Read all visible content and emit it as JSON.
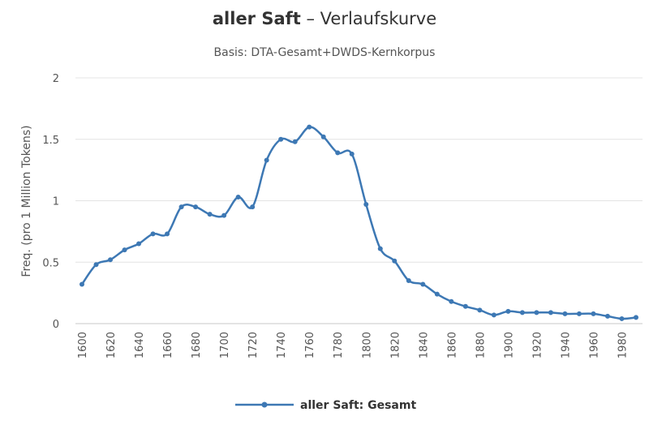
{
  "chart_data": {
    "type": "line",
    "title_bold": "aller Saft",
    "title_rest": " – Verlaufskurve",
    "subtitle": "Basis: DTA-Gesamt+DWDS-Kernkorpus",
    "ylabel": "Freq. (pro 1 Million Tokens)",
    "xlabel": "",
    "ylim": [
      0,
      2
    ],
    "yticks": [
      "0",
      "0.5",
      "1",
      "1.5",
      "2"
    ],
    "xticks": [
      "1600",
      "1620",
      "1640",
      "1660",
      "1680",
      "1700",
      "1720",
      "1740",
      "1760",
      "1780",
      "1800",
      "1820",
      "1840",
      "1860",
      "1880",
      "1900",
      "1920",
      "1940",
      "1960",
      "1980"
    ],
    "x": [
      1600,
      1610,
      1620,
      1630,
      1640,
      1650,
      1660,
      1670,
      1680,
      1690,
      1700,
      1710,
      1720,
      1730,
      1740,
      1750,
      1760,
      1770,
      1780,
      1790,
      1800,
      1810,
      1820,
      1830,
      1840,
      1850,
      1860,
      1870,
      1880,
      1890,
      1900,
      1910,
      1920,
      1930,
      1940,
      1950,
      1960,
      1970,
      1980,
      1990
    ],
    "series": [
      {
        "name": "aller Saft: Gesamt",
        "color": "#3d78b4",
        "values": [
          0.32,
          0.48,
          0.52,
          0.6,
          0.65,
          0.73,
          0.73,
          0.95,
          0.95,
          0.89,
          0.88,
          1.03,
          0.95,
          1.33,
          1.5,
          1.48,
          1.6,
          1.52,
          1.39,
          1.38,
          0.97,
          0.61,
          0.51,
          0.35,
          0.32,
          0.24,
          0.18,
          0.14,
          0.11,
          0.07,
          0.1,
          0.09,
          0.09,
          0.09,
          0.08,
          0.08,
          0.08,
          0.06,
          0.04,
          0.05
        ]
      }
    ],
    "grid": true,
    "legend_position": "bottom"
  }
}
